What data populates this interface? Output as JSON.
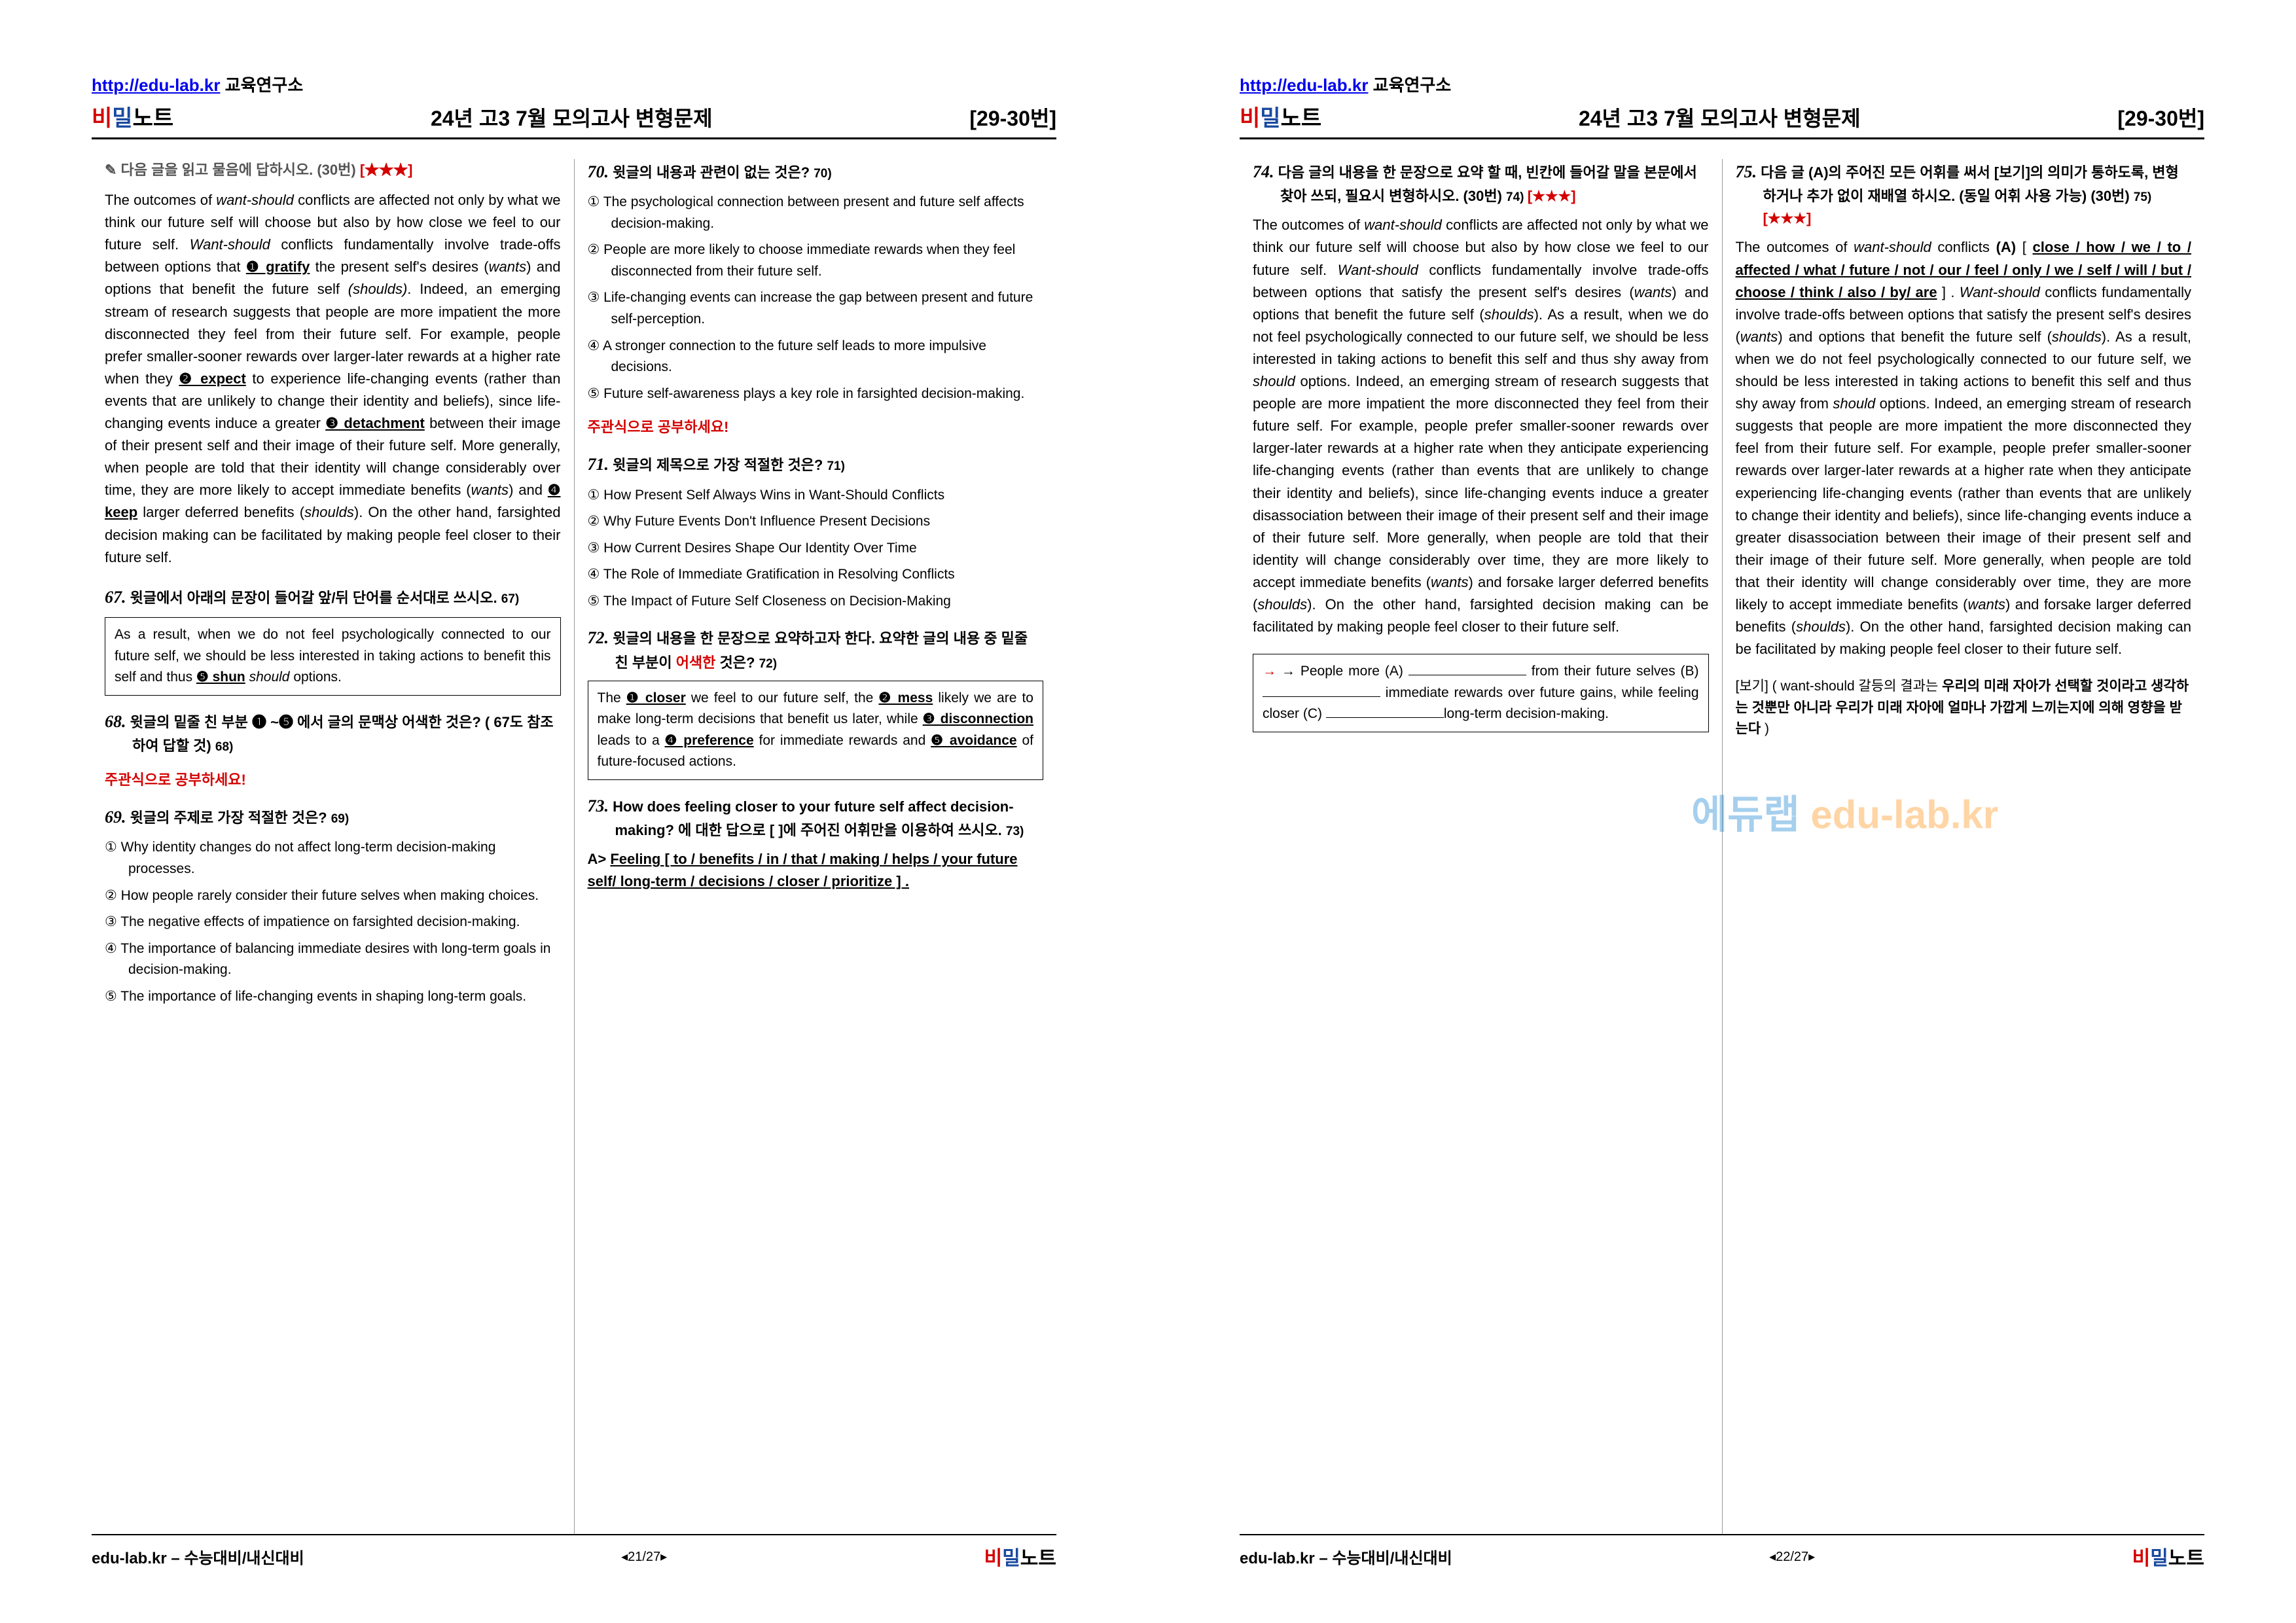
{
  "header": {
    "url": "http://edu-lab.kr",
    "suffix": " 교육연구소",
    "brand_bi": "비",
    "brand_mil": "밀",
    "brand_note": "노트",
    "title": "24년  고3  7월  모의고사  변형문제",
    "range": "[29-30번]"
  },
  "watermark": {
    "a": "에듀랩 ",
    "b": "edu-lab.kr"
  },
  "page1": {
    "col1": {
      "instr_prefix": "✎ 다음 글을 읽고 물음에 답하시오. (30번) ",
      "instr_stars": "[★★★]",
      "passage_parts": [
        "   The outcomes of ",
        {
          "t": "want-should",
          "i": true
        },
        " conflicts are affected not only by what we think our future self will choose but also by how close we feel to our future self. ",
        {
          "t": "Want-should",
          "i": true
        },
        " conflicts fundamentally involve trade-offs between options that ",
        {
          "t": "❶ gratify",
          "u": true
        },
        " the present self's desires (",
        {
          "t": "wants",
          "i": true
        },
        ") and options that benefit the future self ",
        {
          "t": "(shoulds)",
          "i": true
        },
        ". Indeed, an emerging stream of research suggests that people are more impatient the more disconnected they feel from their future self. For example, people prefer smaller-sooner rewards over larger-later rewards at a higher rate when they ",
        {
          "t": "❷ expect",
          "u": true
        },
        " to experience life-changing events (rather than events that are unlikely to change their identity and beliefs), since life-changing events induce a greater ",
        {
          "t": "❸ detachment",
          "u": true
        },
        " between their image of their present self and their image of their future self. More generally, when people are told that their identity will change considerably over time, they are more likely to accept immediate benefits (",
        {
          "t": "wants",
          "i": true
        },
        ") and ",
        {
          "t": "❹ keep",
          "u": true
        },
        " larger deferred benefits (",
        {
          "t": "shoulds",
          "i": true
        },
        "). On the other hand, farsighted decision making can be facilitated by making people feel closer to their future self."
      ],
      "q67_num": "67.",
      "q67_text": " 윗글에서 아래의 문장이 들어갈 앞/뒤 단어를 순서대로 쓰시오. ",
      "q67_ref": "67)",
      "box67": "As a result, when we do not feel psychologically connected to our future self, we should be less interested in taking actions to benefit this self and thus ❺ shun should options.",
      "q68_num": "68.",
      "q68_text": " 윗글의 밑줄 친 부분 ❶ ~❺ 에서 글의 문맥상 어색한 것은? ( 67도 참조하여 답할 것) ",
      "q68_ref": "68)",
      "subj": "주관식으로 공부하세요!",
      "q69_num": "69.",
      "q69_text": " 윗글의 주제로 가장 적절한 것은? ",
      "q69_ref": "69)",
      "q69_choices": [
        "① Why identity changes do not affect long-term decision-making processes.",
        "② How people rarely consider their future selves when making choices.",
        "③ The negative effects of impatience on farsighted decision-making.",
        "④ The importance of balancing immediate desires with long-term goals in decision-making.",
        "⑤ The importance of life-changing events in shaping long-term goals."
      ]
    },
    "col2": {
      "q70_num": "70.",
      "q70_text": " 윗글의 내용과 관련이 없는 것은? ",
      "q70_ref": "70)",
      "q70_choices": [
        "① The psychological connection between present and future self affects decision-making.",
        "② People are more likely to choose immediate rewards when they feel disconnected from their future self.",
        "③ Life-changing events can increase the gap between present and future self-perception.",
        "④ A stronger connection to the future self leads to more impulsive decisions.",
        "⑤ Future self-awareness plays a key role in farsighted decision-making."
      ],
      "subj": "주관식으로 공부하세요!",
      "q71_num": "71.",
      "q71_text": " 윗글의 제목으로 가장 적절한 것은? ",
      "q71_ref": "71)",
      "q71_choices": [
        "① How Present Self Always Wins in Want-Should Conflicts",
        "② Why Future Events Don't Influence Present Decisions",
        "③ How Current Desires Shape Our Identity Over Time",
        "④ The Role of Immediate Gratification in Resolving Conflicts",
        "⑤ The Impact of Future Self Closeness on Decision-Making"
      ],
      "q72_num": "72.",
      "q72_text_a": " 윗글의 내용을 한 문장으로 요약하고자 한다. 요약한 글의 내용 중 밑줄 친 부분이 ",
      "q72_text_red": "어색한",
      "q72_text_b": " 것은? ",
      "q72_ref": "72)",
      "box72_parts": [
        "The ",
        {
          "t": "❶ closer",
          "u": true
        },
        " we feel to our future self, the ",
        {
          "t": "❷ mess",
          "u": true
        },
        " likely we are to make long-term decisions that benefit us later, while ",
        {
          "t": "❸ disconnection",
          "u": true
        },
        " leads to a ",
        {
          "t": "❹ preference",
          "u": true
        },
        " for immediate rewards and ",
        {
          "t": "❺ avoidance",
          "u": true
        },
        " of future-focused actions."
      ],
      "q73_num": "73.",
      "q73_text": " How does feeling closer to your future self affect decision-making? 에 대한 답으로 [ ]에 주어진 어휘만을 이용하여 쓰시오. ",
      "q73_ref": "73)",
      "q73_answer_prefix": "A> ",
      "q73_answer": "Feeling  [ to / benefits / in / that / making / helps / your future self/ long-term / decisions / closer / prioritize ] ."
    },
    "footer": {
      "left": "edu-lab.kr – 수능대비/내신대비",
      "mid": "◂21/27▸"
    }
  },
  "page2": {
    "col1": {
      "q74_num": "74.",
      "q74_text": " 다음 글의 내용을 한 문장으로 요약 할 때, 빈칸에 들어갈 말을 본문에서 찾아 쓰되, 필요시 변형하시오.  (30번) ",
      "q74_ref": "74) ",
      "q74_stars": "[★★★]",
      "passage": "   The outcomes of want-should conflicts are affected not only by what we think our future self will choose but also by how close we feel to our future self. Want-should conflicts fundamentally involve trade-offs between options that satisfy the present self's desires (wants) and options that benefit the future self (shoulds). As a result, when we do not feel psychologically connected to our future self, we should be less interested in taking actions to benefit this self and thus shy away from should options. Indeed, an emerging stream of research suggests that people are more impatient the more disconnected they feel from their future self. For example, people prefer smaller-sooner rewards over larger-later rewards at a higher rate when they anticipate experiencing life-changing events (rather than events that are unlikely to change their identity and beliefs), since life-changing events induce a greater disassociation between their image of their present self and their image of their future self. More generally, when people are told that their identity will change considerably over time, they are more likely to accept immediate benefits (wants) and forsake larger deferred benefits (shoulds). On the other hand, farsighted decision making can be facilitated by making people feel closer to their future self.",
      "box74_l1a": "→ People more (A) ",
      "box74_l1b": " from their future",
      "box74_l2a": "selves (B) ",
      "box74_l2b": " immediate rewards over",
      "box74_l3": "future     gains,      while      feeling      closer",
      "box74_l4a": "(C) ",
      "box74_l4b": "long-term decision-making."
    },
    "col2": {
      "q75_num": "75.",
      "q75_text": " 다음 글 (A)의 주어진 모든 어휘를 써서 [보기]의 의미가 통하도록, 변형하거나 추가 없이 재배열 하시오. (동일 어휘 사용 가능) (30번) ",
      "q75_ref": "75) ",
      "q75_stars": "[★★★]",
      "p_intro": "   The outcomes of want-should conflicts (A) [ ",
      "p_u": "close / how / we / to / affected / what / future / not / our / feel / only / we / self / will / but / choose / think / also / by/ are",
      "p_rest1": " ] .   Want-should conflicts fundamentally involve trade-offs between options that satisfy the present self's desires (wants) and options that benefit the future self (shoulds). As a result, when we do not feel psychologically connected to our future self, we should be less interested in taking actions to benefit this self and thus shy away from should options. Indeed, an emerging stream of research suggests that people are more impatient the more disconnected they feel from their future self. For example, people prefer smaller-sooner rewards over larger-later rewards at a higher rate when they anticipate experiencing life-changing events (rather than events that are unlikely to change their identity and beliefs), since life-changing events induce a greater disassociation between their image of their present self and their image of their future self. More generally, when people are told that their identity will change considerably over time, they are more likely to accept immediate benefits (wants) and forsake larger deferred benefits (shoulds). On the other hand, farsighted decision making can be facilitated by making people feel closer to their future self.",
      "hint_a": "[보기] ( want-should 갈등의 결과는 ",
      "hint_b": "우리의 미래 자아가 선택할 것이라고 생각하는 것뿐만 아니라 우리가 미래 자아에 얼마나 가깝게 느끼는지에 의해 영향을 받는다",
      "hint_c": "   )"
    },
    "footer": {
      "left": "edu-lab.kr – 수능대비/내신대비",
      "mid": "◂22/27▸"
    }
  }
}
